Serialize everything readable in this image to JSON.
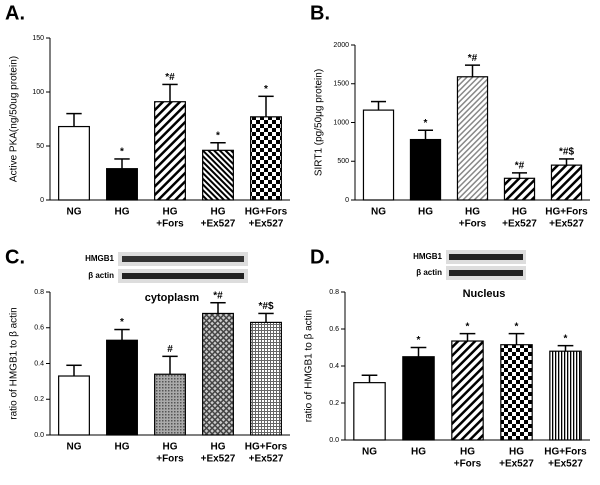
{
  "chart_data": [
    {
      "type": "bar",
      "label": "A.",
      "ylabel": "Active PKA(ng/50ug protein)",
      "categories": [
        [
          "NG"
        ],
        [
          "HG"
        ],
        [
          "HG",
          "+Fors"
        ],
        [
          "HG",
          "+Ex527"
        ],
        [
          "HG+Fors",
          "+Ex527"
        ]
      ],
      "values": [
        68,
        29,
        91,
        46,
        77
      ],
      "errors": [
        12,
        9,
        16,
        7,
        19
      ],
      "annotations": [
        null,
        "*",
        "*#",
        "*",
        "*"
      ],
      "ylim": [
        0,
        150
      ],
      "yticks": [
        0,
        50,
        100,
        150
      ]
    },
    {
      "type": "bar",
      "label": "B.",
      "ylabel": "SIRT1 (pg/50μg protein)",
      "categories": [
        [
          "NG"
        ],
        [
          "HG"
        ],
        [
          "HG",
          "+Fors"
        ],
        [
          "HG",
          "+Ex527"
        ],
        [
          "HG+Fors",
          "+Ex527"
        ]
      ],
      "values": [
        1160,
        780,
        1590,
        280,
        450
      ],
      "errors": [
        110,
        120,
        150,
        70,
        80
      ],
      "annotations": [
        null,
        "*",
        "*#",
        "*#",
        "*#$"
      ],
      "ylim": [
        0,
        2000
      ],
      "yticks": [
        0,
        500,
        1000,
        1500,
        2000
      ]
    },
    {
      "type": "bar",
      "label": "C.",
      "blot_labels": [
        "HMGB1",
        "β actin"
      ],
      "title": "cytoplasm",
      "ylabel": "ratio of HMGB1 to β actin",
      "categories": [
        [
          "NG"
        ],
        [
          "HG"
        ],
        [
          "HG",
          "+Fors"
        ],
        [
          "HG",
          "+Ex527"
        ],
        [
          "HG+Fors",
          "+Ex527"
        ]
      ],
      "values": [
        0.33,
        0.53,
        0.34,
        0.68,
        0.63
      ],
      "errors": [
        0.06,
        0.06,
        0.1,
        0.06,
        0.05
      ],
      "annotations": [
        null,
        "*",
        "#",
        "*#",
        "*#$"
      ],
      "ylim": [
        0,
        0.8
      ],
      "yticks": [
        {
          "value": 0,
          "label": "0.0"
        },
        0.2,
        0.4,
        0.6,
        0.8
      ]
    },
    {
      "type": "bar",
      "label": "D.",
      "blot_labels": [
        "HMGB1",
        "β actin"
      ],
      "title": "Nucleus",
      "ylabel": "ratio of HMGB1 to β actin",
      "categories": [
        [
          "NG"
        ],
        [
          "HG"
        ],
        [
          "HG",
          "+Fors"
        ],
        [
          "HG",
          "+Ex527"
        ],
        [
          "HG+Fors",
          "+Ex527"
        ]
      ],
      "values": [
        0.31,
        0.45,
        0.535,
        0.515,
        0.48
      ],
      "errors": [
        0.04,
        0.05,
        0.04,
        0.06,
        0.03
      ],
      "annotations": [
        null,
        "*",
        "*",
        "*",
        "*"
      ],
      "ylim": [
        0,
        0.8
      ],
      "yticks": [
        {
          "value": 0,
          "label": "0.0"
        },
        0.2,
        0.4,
        0.6,
        0.8
      ]
    }
  ]
}
